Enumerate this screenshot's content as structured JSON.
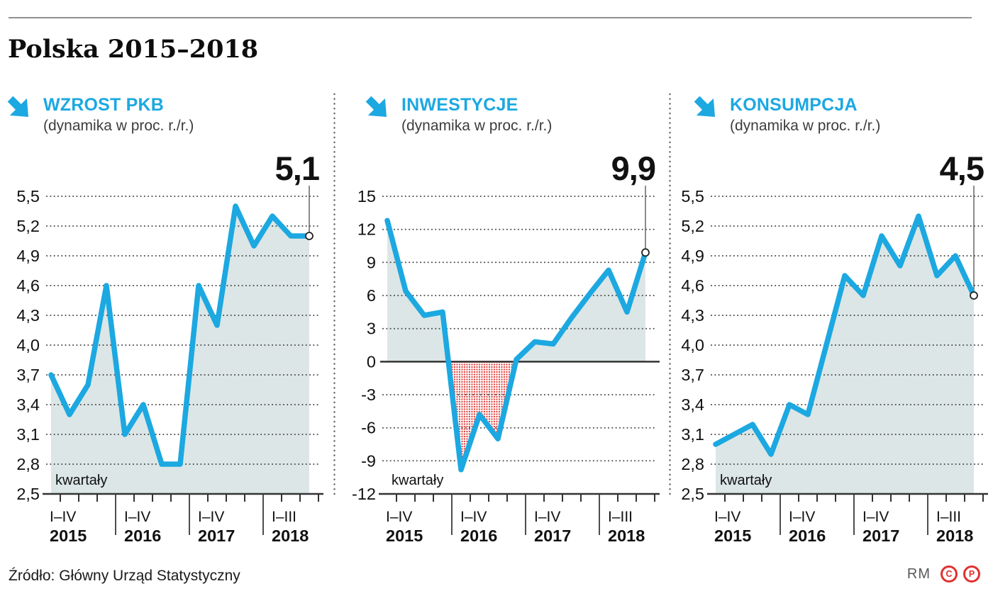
{
  "page": {
    "title": "Polska 2015–2018",
    "source": "Źródło: Główny Urząd Statystyczny",
    "credit": "RM",
    "rights_marks": [
      "C",
      "P"
    ],
    "colors": {
      "accent_blue": "#1ca8e1",
      "area_fill": "#dce6e6",
      "negative_dots": "#e24a46",
      "rights_red": "#e0312f",
      "grid_dots": "#4a4a4a",
      "axis": "#333333"
    }
  },
  "chart_data": [
    {
      "type": "line",
      "title": "WZROST PKB",
      "subtitle": "(dynamika w proc. r./r.)",
      "x_axis_note": "kwartały",
      "x_groups": [
        {
          "quarters_label": "I–IV",
          "year": "2015",
          "count": 4
        },
        {
          "quarters_label": "I–IV",
          "year": "2016",
          "count": 4
        },
        {
          "quarters_label": "I–IV",
          "year": "2017",
          "count": 4
        },
        {
          "quarters_label": "I–III",
          "year": "2018",
          "count": 3
        }
      ],
      "values": [
        3.7,
        3.3,
        3.6,
        4.6,
        3.1,
        3.4,
        2.8,
        2.8,
        4.6,
        4.2,
        5.4,
        5.0,
        5.3,
        5.1,
        5.1
      ],
      "end_label": "5,1",
      "ylim": [
        2.5,
        5.5
      ],
      "yticks": [
        5.5,
        5.2,
        4.9,
        4.6,
        4.3,
        4.0,
        3.7,
        3.4,
        3.1,
        2.8,
        2.5
      ],
      "ytick_labels": [
        "5,5",
        "5,2",
        "4,9",
        "4,6",
        "4,3",
        "4,0",
        "3,7",
        "3,4",
        "3,1",
        "2,8",
        "2,5"
      ],
      "fill_baseline": 2.5,
      "zero_line": "none",
      "grid": "dotted",
      "legend": "none"
    },
    {
      "type": "line",
      "title": "INWESTYCJE",
      "subtitle": "(dynamika w proc. r./r.)",
      "x_axis_note": "kwartały",
      "x_groups": [
        {
          "quarters_label": "I–IV",
          "year": "2015",
          "count": 4
        },
        {
          "quarters_label": "I–IV",
          "year": "2016",
          "count": 4
        },
        {
          "quarters_label": "I–IV",
          "year": "2017",
          "count": 4
        },
        {
          "quarters_label": "I–III",
          "year": "2018",
          "count": 3
        }
      ],
      "values": [
        12.8,
        6.4,
        4.2,
        4.5,
        -9.8,
        -4.8,
        -7.0,
        0.2,
        1.8,
        1.6,
        4.0,
        6.2,
        8.3,
        4.5,
        9.9
      ],
      "end_label": "9,9",
      "ylim": [
        -12,
        15
      ],
      "yticks": [
        15,
        12,
        9,
        6,
        3,
        0,
        -3,
        -6,
        -9,
        -12
      ],
      "ytick_labels": [
        "15",
        "12",
        "9",
        "6",
        "3",
        "0",
        "-3",
        "-6",
        "-9",
        "-12"
      ],
      "fill_baseline": 0,
      "zero_line": "solid",
      "grid": "dotted",
      "legend": "none"
    },
    {
      "type": "line",
      "title": "KONSUMPCJA",
      "subtitle": "(dynamika w proc. r./r.)",
      "x_axis_note": "kwartały",
      "x_groups": [
        {
          "quarters_label": "I–IV",
          "year": "2015",
          "count": 4
        },
        {
          "quarters_label": "I–IV",
          "year": "2016",
          "count": 4
        },
        {
          "quarters_label": "I–IV",
          "year": "2017",
          "count": 4
        },
        {
          "quarters_label": "I–III",
          "year": "2018",
          "count": 3
        }
      ],
      "values": [
        3.0,
        3.1,
        3.2,
        2.9,
        3.4,
        3.3,
        4.0,
        4.7,
        4.5,
        5.1,
        4.8,
        5.3,
        4.7,
        4.9,
        4.5
      ],
      "end_label": "4,5",
      "ylim": [
        2.5,
        5.5
      ],
      "yticks": [
        5.5,
        5.2,
        4.9,
        4.6,
        4.3,
        4.0,
        3.7,
        3.4,
        3.1,
        2.8,
        2.5
      ],
      "ytick_labels": [
        "5,5",
        "5,2",
        "4,9",
        "4,6",
        "4,3",
        "4,0",
        "3,7",
        "3,4",
        "3,1",
        "2,8",
        "2,5"
      ],
      "fill_baseline": 2.5,
      "zero_line": "none",
      "grid": "dotted",
      "legend": "none"
    }
  ]
}
